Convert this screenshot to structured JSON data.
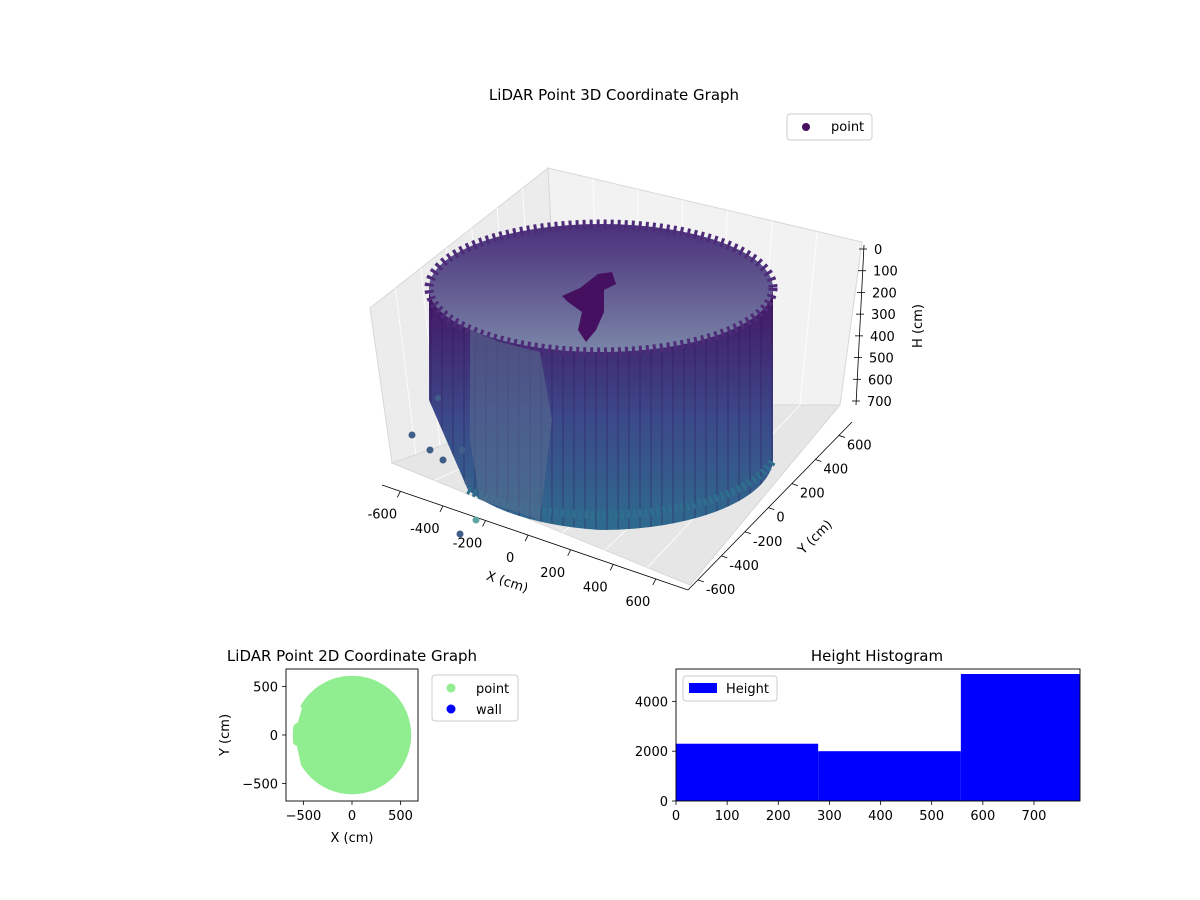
{
  "chart_data": [
    {
      "type": "scatter",
      "projection": "3d",
      "title": "LiDAR Point 3D Coordinate Graph",
      "xlabel": "X (cm)",
      "ylabel": "Y (cm)",
      "zlabel": "H (cm)",
      "x_ticks": [
        -600,
        -400,
        -200,
        0,
        200,
        400,
        600
      ],
      "y_ticks": [
        -600,
        -400,
        -200,
        0,
        200,
        400,
        600
      ],
      "z_ticks": [
        0,
        100,
        200,
        300,
        400,
        500,
        600,
        700
      ],
      "z_inverted": true,
      "legend": [
        "point"
      ],
      "legend_position": "upper-right",
      "colormap": "viridis",
      "grid": true,
      "series": [
        {
          "name": "point",
          "shape": "cylinder",
          "radius": 580,
          "height_range": [
            0,
            760
          ],
          "description_points": [
            {
              "x": 580,
              "y": 0,
              "h": 0
            },
            {
              "x": 0,
              "y": 580,
              "h": 0
            },
            {
              "x": -580,
              "y": 0,
              "h": 0
            },
            {
              "x": 0,
              "y": -580,
              "h": 0
            },
            {
              "x": 580,
              "y": 0,
              "h": 760
            },
            {
              "x": 0,
              "y": -580,
              "h": 760
            }
          ]
        }
      ]
    },
    {
      "type": "scatter",
      "title": "LiDAR Point 2D Coordinate Graph",
      "xlabel": "X (cm)",
      "ylabel": "Y (cm)",
      "x_ticks": [
        -500,
        0,
        500
      ],
      "y_ticks": [
        -500,
        0,
        500
      ],
      "xlim": [
        -680,
        680
      ],
      "ylim": [
        -680,
        680
      ],
      "legend": [
        "point",
        "wall"
      ],
      "legend_position": "outside-right",
      "colors": {
        "point": "#90ee90",
        "wall": "#0000ff"
      },
      "series": [
        {
          "name": "point",
          "region": "disk",
          "radius": 610
        },
        {
          "name": "wall",
          "values": []
        }
      ]
    },
    {
      "type": "bar",
      "title": "Height Histogram",
      "xlabel": "",
      "ylabel": "",
      "x_ticks": [
        0,
        100,
        200,
        300,
        400,
        500,
        600,
        700
      ],
      "y_ticks": [
        0,
        2000,
        4000
      ],
      "xlim": [
        0,
        790
      ],
      "ylim": [
        0,
        5300
      ],
      "legend": [
        "Height"
      ],
      "legend_position": "upper-left",
      "color": "#0000ff",
      "bins": [
        {
          "start": 0,
          "end": 278,
          "count": 2300
        },
        {
          "start": 278,
          "end": 557,
          "count": 2000
        },
        {
          "start": 557,
          "end": 790,
          "count": 5100
        }
      ]
    }
  ]
}
